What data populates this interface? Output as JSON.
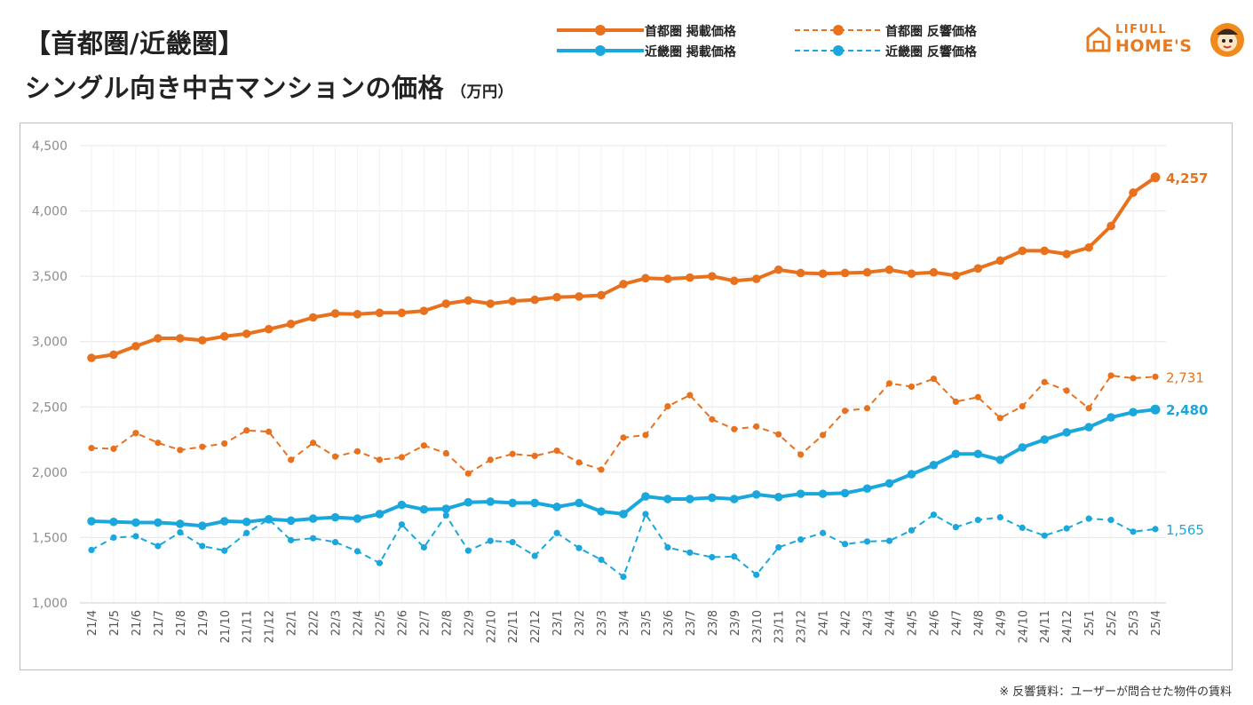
{
  "header": {
    "title_line1": "【首都圏/近畿圏】",
    "title_line2": "シングル向き中古マンションの価格",
    "unit": "（万円）"
  },
  "logo": {
    "line1": "LIFULL",
    "line2": "HOME'S"
  },
  "footnote": "※ 反響賃料：ユーザーが問合せた物件の賃料",
  "colors": {
    "orange": "#e8711e",
    "blue": "#1aa7dc",
    "grid": "#e6e6e6",
    "axis_text": "#8c8c8c"
  },
  "chart_data": {
    "type": "line",
    "title": "【首都圏/近畿圏】シングル向き中古マンションの価格",
    "ylabel": "（万円）",
    "ylim": [
      1000,
      4500
    ],
    "yticks": [
      1000,
      1500,
      2000,
      2500,
      3000,
      3500,
      4000,
      4500
    ],
    "ytick_labels": [
      "1,000",
      "1,500",
      "2,000",
      "2,500",
      "3,000",
      "3,500",
      "4,000",
      "4,500"
    ],
    "grid": true,
    "categories": [
      "21/4",
      "21/5",
      "21/6",
      "21/7",
      "21/8",
      "21/9",
      "21/10",
      "21/11",
      "21/12",
      "22/1",
      "22/2",
      "22/3",
      "22/4",
      "22/5",
      "22/6",
      "22/7",
      "22/8",
      "22/9",
      "22/10",
      "22/11",
      "22/12",
      "23/1",
      "23/2",
      "23/3",
      "23/4",
      "23/5",
      "23/6",
      "23/7",
      "23/8",
      "23/9",
      "23/10",
      "23/11",
      "23/12",
      "24/1",
      "24/2",
      "24/3",
      "24/4",
      "24/5",
      "24/6",
      "24/7",
      "24/8",
      "24/9",
      "24/10",
      "24/11",
      "24/12",
      "25/1",
      "25/2",
      "25/3",
      "25/4"
    ],
    "series": [
      {
        "name": "首都圏 掲載価格",
        "color": "#e8711e",
        "style": "solid",
        "end_label": "4,257",
        "values": [
          2875,
          2900,
          2965,
          3025,
          3025,
          3010,
          3040,
          3060,
          3095,
          3135,
          3185,
          3215,
          3210,
          3220,
          3220,
          3235,
          3290,
          3315,
          3290,
          3310,
          3320,
          3340,
          3345,
          3355,
          3440,
          3485,
          3480,
          3490,
          3500,
          3465,
          3480,
          3550,
          3525,
          3520,
          3525,
          3530,
          3550,
          3520,
          3530,
          3505,
          3560,
          3620,
          3695,
          3695,
          3670,
          3720,
          3885,
          4140,
          4257
        ]
      },
      {
        "name": "近畿圏 掲載価格",
        "color": "#1aa7dc",
        "style": "solid",
        "end_label": "2,480",
        "values": [
          1625,
          1620,
          1615,
          1615,
          1605,
          1590,
          1625,
          1620,
          1640,
          1630,
          1645,
          1655,
          1645,
          1680,
          1750,
          1715,
          1720,
          1770,
          1775,
          1765,
          1765,
          1735,
          1765,
          1700,
          1680,
          1815,
          1795,
          1795,
          1805,
          1795,
          1830,
          1810,
          1835,
          1835,
          1840,
          1875,
          1915,
          1985,
          2055,
          2140,
          2140,
          2095,
          2190,
          2250,
          2305,
          2345,
          2420,
          2460,
          2480
        ]
      },
      {
        "name": "首都圏 反響価格",
        "color": "#e8711e",
        "style": "dashed",
        "end_label": "2,731",
        "values": [
          2185,
          2180,
          2300,
          2225,
          2170,
          2195,
          2220,
          2320,
          2310,
          2095,
          2225,
          2120,
          2160,
          2095,
          2115,
          2205,
          2145,
          1990,
          2095,
          2140,
          2125,
          2165,
          2075,
          2020,
          2265,
          2285,
          2505,
          2590,
          2405,
          2330,
          2350,
          2290,
          2135,
          2285,
          2470,
          2490,
          2680,
          2655,
          2715,
          2540,
          2575,
          2415,
          2505,
          2690,
          2625,
          2490,
          2740,
          2720,
          2731
        ]
      },
      {
        "name": "近畿圏 反響価格",
        "color": "#1aa7dc",
        "style": "dashed",
        "end_label": "1,565",
        "values": [
          1405,
          1500,
          1510,
          1435,
          1540,
          1435,
          1400,
          1535,
          1640,
          1480,
          1495,
          1465,
          1395,
          1305,
          1600,
          1425,
          1670,
          1400,
          1475,
          1465,
          1360,
          1535,
          1420,
          1330,
          1200,
          1680,
          1425,
          1385,
          1350,
          1355,
          1215,
          1425,
          1485,
          1535,
          1450,
          1470,
          1475,
          1555,
          1675,
          1580,
          1635,
          1655,
          1575,
          1515,
          1570,
          1645,
          1635,
          1545,
          1565
        ]
      }
    ],
    "legend_position": "top"
  }
}
